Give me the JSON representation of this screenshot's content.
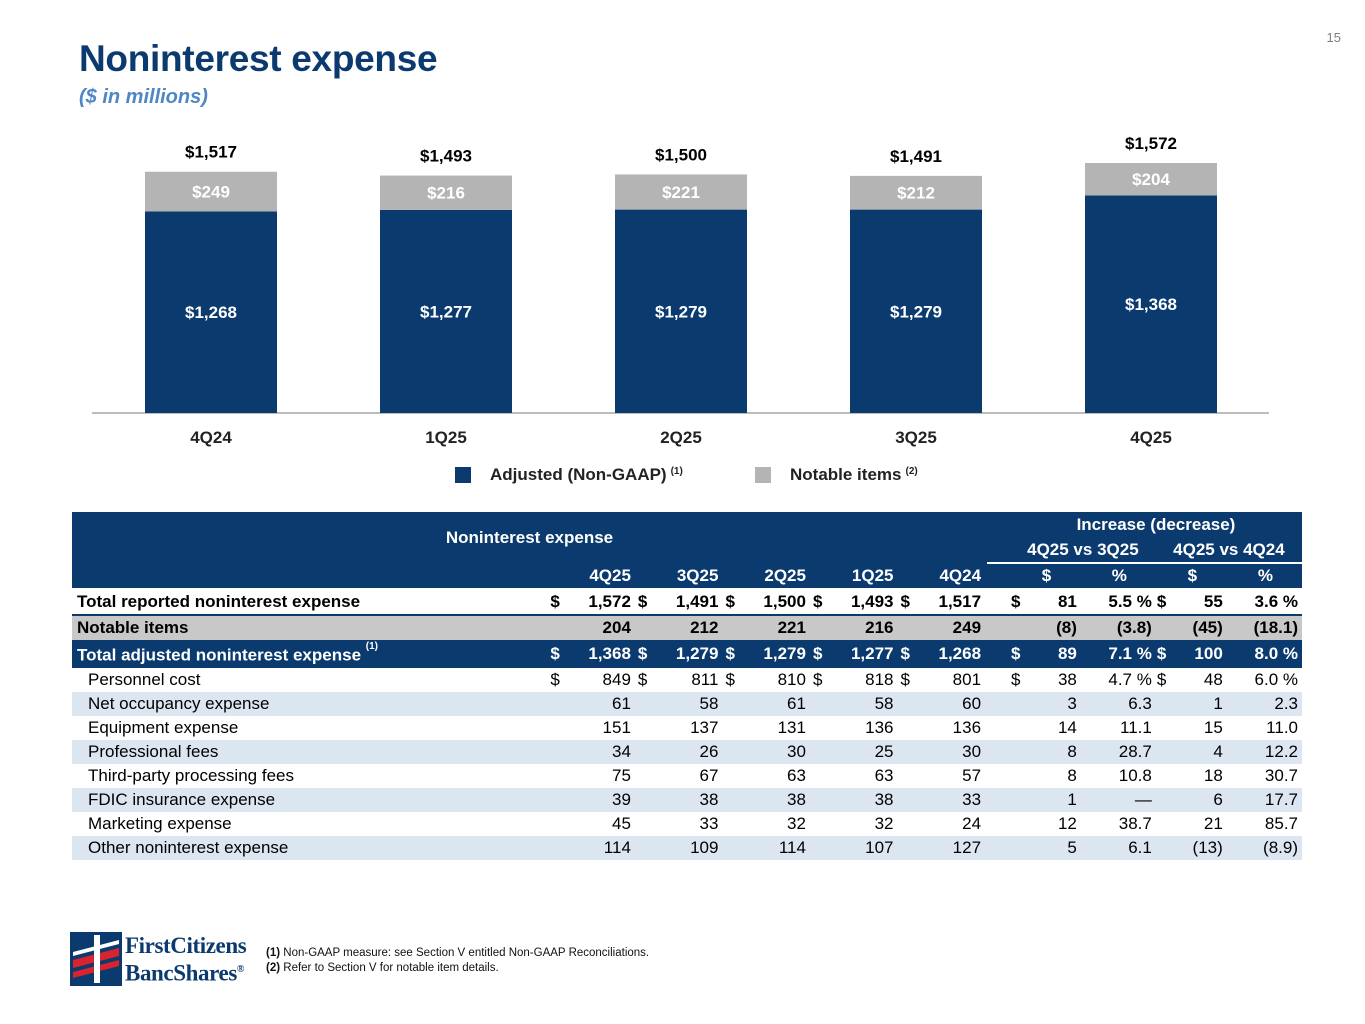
{
  "page": {
    "number": "15",
    "title": "Noninterest expense",
    "subtitle": "($ in millions)"
  },
  "colors": {
    "navy": "#0b3a6f",
    "gray": "#b4b4b4",
    "subtitle_blue": "#4f86c6",
    "row_shade": "#dce6f1",
    "notable_row": "#c8c8c8"
  },
  "chart_data": {
    "type": "bar",
    "stacked": true,
    "categories": [
      "4Q24",
      "1Q25",
      "2Q25",
      "3Q25",
      "4Q25"
    ],
    "series": [
      {
        "name": "Adjusted (Non-GAAP)",
        "footnote": "(1)",
        "color": "#0b3a6f",
        "values": [
          1268,
          1277,
          1279,
          1279,
          1368
        ],
        "labels": [
          "$1,268",
          "$1,277",
          "$1,279",
          "$1,279",
          "$1,368"
        ]
      },
      {
        "name": "Notable items",
        "footnote": "(2)",
        "color": "#b4b4b4",
        "values": [
          249,
          216,
          221,
          212,
          204
        ],
        "labels": [
          "$249",
          "$216",
          "$221",
          "$212",
          "$204"
        ]
      }
    ],
    "totals": [
      1517,
      1493,
      1500,
      1491,
      1572
    ],
    "total_labels": [
      "$1,517",
      "$1,493",
      "$1,500",
      "$1,491",
      "$1,572"
    ],
    "ylim": [
      0,
      1572
    ],
    "legend": "bottom-center",
    "grid": false
  },
  "table": {
    "title": "Noninterest expense",
    "group_title": "Increase (decrease)",
    "compare1": "4Q25 vs 3Q25",
    "compare2": "4Q25 vs 4Q24",
    "columns": [
      "4Q25",
      "3Q25",
      "2Q25",
      "1Q25",
      "4Q24",
      "$",
      "%",
      "$",
      "%"
    ],
    "rows": [
      {
        "label": "Total reported noninterest expense",
        "d": [
          "$",
          "$",
          "$",
          "$",
          "$",
          "$",
          "$"
        ],
        "v": [
          "1,572",
          "1,491",
          "1,500",
          "1,493",
          "1,517",
          "81",
          "5.5 %",
          "55",
          "3.6 %"
        ]
      },
      {
        "label": "Notable items",
        "d": [
          "",
          "",
          "",
          "",
          "",
          "",
          ""
        ],
        "v": [
          "204",
          "212",
          "221",
          "216",
          "249",
          "(8)",
          "(3.8)",
          "(45)",
          "(18.1)"
        ]
      },
      {
        "label": "Total adjusted noninterest expense",
        "note": "(1)",
        "d": [
          "$",
          "$",
          "$",
          "$",
          "$",
          "$",
          "$"
        ],
        "v": [
          "1,368",
          "1,279",
          "1,279",
          "1,277",
          "1,268",
          "89",
          "7.1 %",
          "100",
          "8.0 %"
        ]
      },
      {
        "label": "Personnel cost",
        "d": [
          "$",
          "$",
          "$",
          "$",
          "$",
          "$",
          "$"
        ],
        "v": [
          "849",
          "811",
          "810",
          "818",
          "801",
          "38",
          "4.7 %",
          "48",
          "6.0 %"
        ]
      },
      {
        "label": "Net occupancy expense",
        "d": [
          "",
          "",
          "",
          "",
          "",
          "",
          ""
        ],
        "v": [
          "61",
          "58",
          "61",
          "58",
          "60",
          "3",
          "6.3",
          "1",
          "2.3"
        ]
      },
      {
        "label": "Equipment expense",
        "d": [
          "",
          "",
          "",
          "",
          "",
          "",
          ""
        ],
        "v": [
          "151",
          "137",
          "131",
          "136",
          "136",
          "14",
          "11.1",
          "15",
          "11.0"
        ]
      },
      {
        "label": "Professional fees",
        "d": [
          "",
          "",
          "",
          "",
          "",
          "",
          ""
        ],
        "v": [
          "34",
          "26",
          "30",
          "25",
          "30",
          "8",
          "28.7",
          "4",
          "12.2"
        ]
      },
      {
        "label": "Third-party processing fees",
        "d": [
          "",
          "",
          "",
          "",
          "",
          "",
          ""
        ],
        "v": [
          "75",
          "67",
          "63",
          "63",
          "57",
          "8",
          "10.8",
          "18",
          "30.7"
        ]
      },
      {
        "label": "FDIC insurance expense",
        "d": [
          "",
          "",
          "",
          "",
          "",
          "",
          ""
        ],
        "v": [
          "39",
          "38",
          "38",
          "38",
          "33",
          "1",
          "—",
          "6",
          "17.7"
        ]
      },
      {
        "label": "Marketing expense",
        "d": [
          "",
          "",
          "",
          "",
          "",
          "",
          ""
        ],
        "v": [
          "45",
          "33",
          "32",
          "32",
          "24",
          "12",
          "38.7",
          "21",
          "85.7"
        ]
      },
      {
        "label": "Other noninterest expense",
        "d": [
          "",
          "",
          "",
          "",
          "",
          "",
          ""
        ],
        "v": [
          "114",
          "109",
          "114",
          "107",
          "127",
          "5",
          "6.1",
          "(13)",
          "(8.9)"
        ]
      }
    ]
  },
  "footnotes": [
    {
      "num": "(1)",
      "text": "Non-GAAP measure: see Section V entitled Non-GAAP Reconciliations."
    },
    {
      "num": "(2)",
      "text": "Refer to Section V for notable item details."
    }
  ],
  "logo": {
    "line1": "FirstCitizens",
    "line2": "BancShares",
    "mark": "®"
  }
}
